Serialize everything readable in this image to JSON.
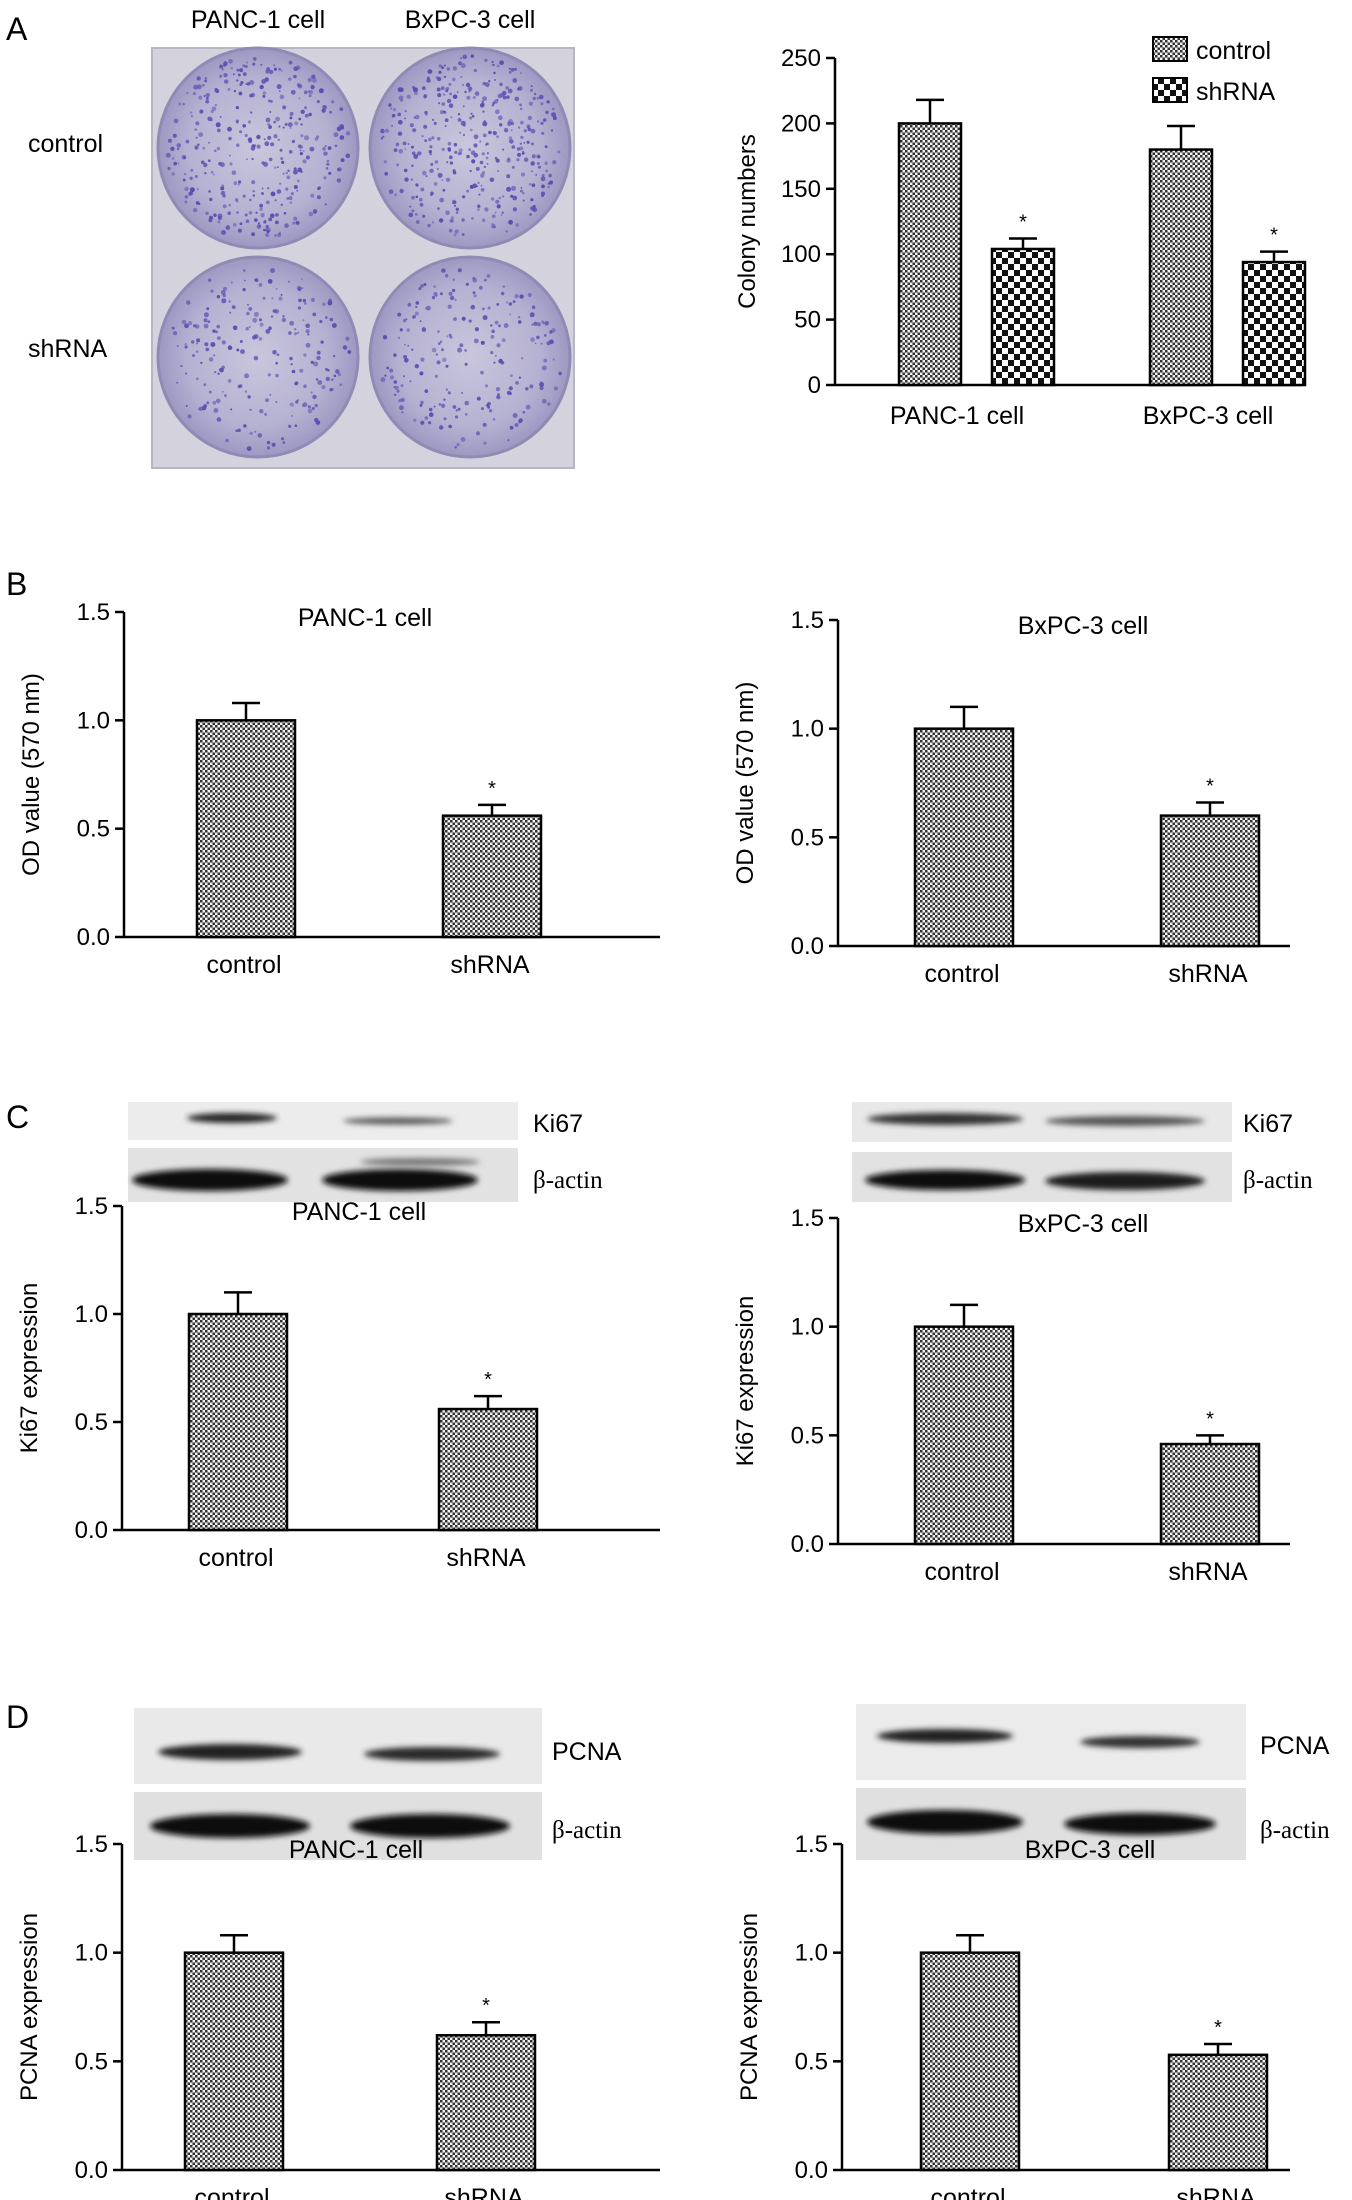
{
  "panel_letters": {
    "a": "A",
    "b": "B",
    "c": "C",
    "d": "D"
  },
  "plate": {
    "col_labels": [
      "PANC-1 cell",
      "BxPC-3 cell"
    ],
    "row_labels": [
      "control",
      "shRNA"
    ],
    "stain_color": "#5a4fb0"
  },
  "blots": {
    "c_left": {
      "top_label": "Ki67",
      "bottom_label": "β-actin"
    },
    "c_right": {
      "top_label": "Ki67",
      "bottom_label": "β-actin"
    },
    "d_left": {
      "top_label": "PCNA",
      "bottom_label": "β-actin"
    },
    "d_right": {
      "top_label": "PCNA",
      "bottom_label": "β-actin"
    }
  },
  "chart_data": [
    {
      "id": "a",
      "type": "bar",
      "categories": [
        "PANC-1 cell",
        "BxPC-3 cell"
      ],
      "series": [
        {
          "name": "control",
          "values": [
            200,
            180
          ],
          "errors": [
            18,
            18
          ],
          "stars": [
            "",
            ""
          ]
        },
        {
          "name": "shRNA",
          "values": [
            104,
            94
          ],
          "errors": [
            8,
            8
          ],
          "stars": [
            "*",
            "*"
          ]
        }
      ],
      "title": "",
      "xlabel": "",
      "ylabel": "Colony numbers",
      "ylim": [
        0,
        250
      ],
      "yticks": [
        0,
        50,
        100,
        150,
        200,
        250
      ],
      "legend": "top-right"
    },
    {
      "id": "b_left",
      "type": "bar",
      "categories": [
        "control",
        "shRNA"
      ],
      "values": [
        1.0,
        0.56
      ],
      "errors": [
        0.08,
        0.05
      ],
      "stars": [
        "",
        "*"
      ],
      "title": "PANC-1 cell",
      "ylabel": "OD value (570 nm)",
      "ylim": [
        0,
        1.5
      ],
      "yticks": [
        "0.0",
        "0.5",
        "1.0",
        "1.5"
      ]
    },
    {
      "id": "b_right",
      "type": "bar",
      "categories": [
        "control",
        "shRNA"
      ],
      "values": [
        1.0,
        0.6
      ],
      "errors": [
        0.1,
        0.06
      ],
      "stars": [
        "",
        "*"
      ],
      "title": "BxPC-3 cell",
      "ylabel": "OD value (570 nm)",
      "ylim": [
        0,
        1.5
      ],
      "yticks": [
        "0.0",
        "0.5",
        "1.0",
        "1.5"
      ]
    },
    {
      "id": "c_left",
      "type": "bar",
      "categories": [
        "control",
        "shRNA"
      ],
      "values": [
        1.0,
        0.56
      ],
      "errors": [
        0.1,
        0.06
      ],
      "stars": [
        "",
        "*"
      ],
      "title": "PANC-1 cell",
      "ylabel": "Ki67 expression",
      "ylim": [
        0,
        1.5
      ],
      "yticks": [
        "0.0",
        "0.5",
        "1.0",
        "1.5"
      ]
    },
    {
      "id": "c_right",
      "type": "bar",
      "categories": [
        "control",
        "shRNA"
      ],
      "values": [
        1.0,
        0.46
      ],
      "errors": [
        0.1,
        0.04
      ],
      "stars": [
        "",
        "*"
      ],
      "title": "BxPC-3 cell",
      "ylabel": "Ki67 expression",
      "ylim": [
        0,
        1.5
      ],
      "yticks": [
        "0.0",
        "0.5",
        "1.0",
        "1.5"
      ]
    },
    {
      "id": "d_left",
      "type": "bar",
      "categories": [
        "control",
        "shRNA"
      ],
      "values": [
        1.0,
        0.62
      ],
      "errors": [
        0.08,
        0.06
      ],
      "stars": [
        "",
        "*"
      ],
      "title": "PANC-1 cell",
      "ylabel": "PCNA expression",
      "ylim": [
        0,
        1.5
      ],
      "yticks": [
        "0.0",
        "0.5",
        "1.0",
        "1.5"
      ]
    },
    {
      "id": "d_right",
      "type": "bar",
      "categories": [
        "control",
        "shRNA"
      ],
      "values": [
        1.0,
        0.53
      ],
      "errors": [
        0.08,
        0.05
      ],
      "stars": [
        "",
        "*"
      ],
      "title": "BxPC-3 cell",
      "ylabel": "PCNA expression",
      "ylim": [
        0,
        1.5
      ],
      "yticks": [
        "0.0",
        "0.5",
        "1.0",
        "1.5"
      ]
    }
  ]
}
